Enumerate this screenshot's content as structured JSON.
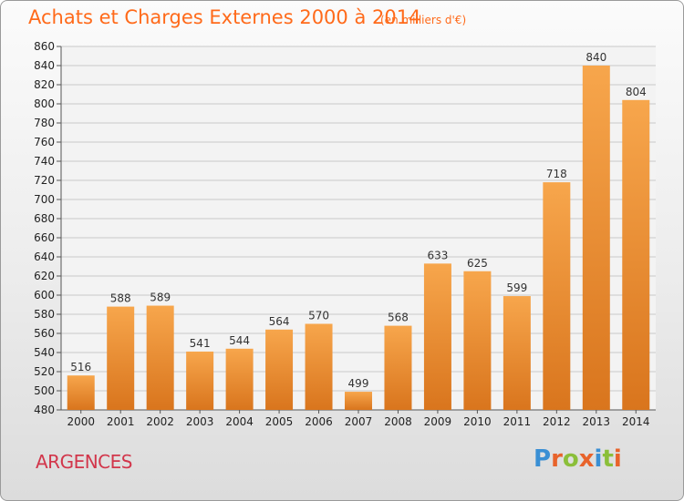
{
  "title": "Achats et Charges Externes 2000 à 2014",
  "unit_note": "(en milliers d'€)",
  "commune": "ARGENCES",
  "brand": {
    "letters": [
      "P",
      "r",
      "o",
      "x",
      "i",
      "t",
      "i"
    ],
    "colors": [
      "#3a8fd4",
      "#e8632b",
      "#8bbf3a",
      "#e8632b",
      "#3a8fd4",
      "#8bbf3a",
      "#e8632b"
    ]
  },
  "colors": {
    "bar_top": "#f7a64c",
    "bar_bottom": "#d9751d",
    "title": "#ff6a1a",
    "commune": "#d2364b"
  },
  "chart_data": {
    "type": "bar",
    "title": "Achats et Charges Externes 2000 à 2014",
    "categories": [
      "2000",
      "2001",
      "2002",
      "2003",
      "2004",
      "2005",
      "2006",
      "2007",
      "2008",
      "2009",
      "2010",
      "2011",
      "2012",
      "2013",
      "2014"
    ],
    "values": [
      516,
      588,
      589,
      541,
      544,
      564,
      570,
      499,
      568,
      633,
      625,
      599,
      718,
      840,
      804
    ],
    "ylim": [
      480,
      860
    ],
    "yticks": [
      480,
      500,
      520,
      540,
      560,
      580,
      600,
      620,
      640,
      660,
      680,
      700,
      720,
      740,
      760,
      780,
      800,
      820,
      840,
      860
    ],
    "grid": true,
    "data_labels": true
  }
}
